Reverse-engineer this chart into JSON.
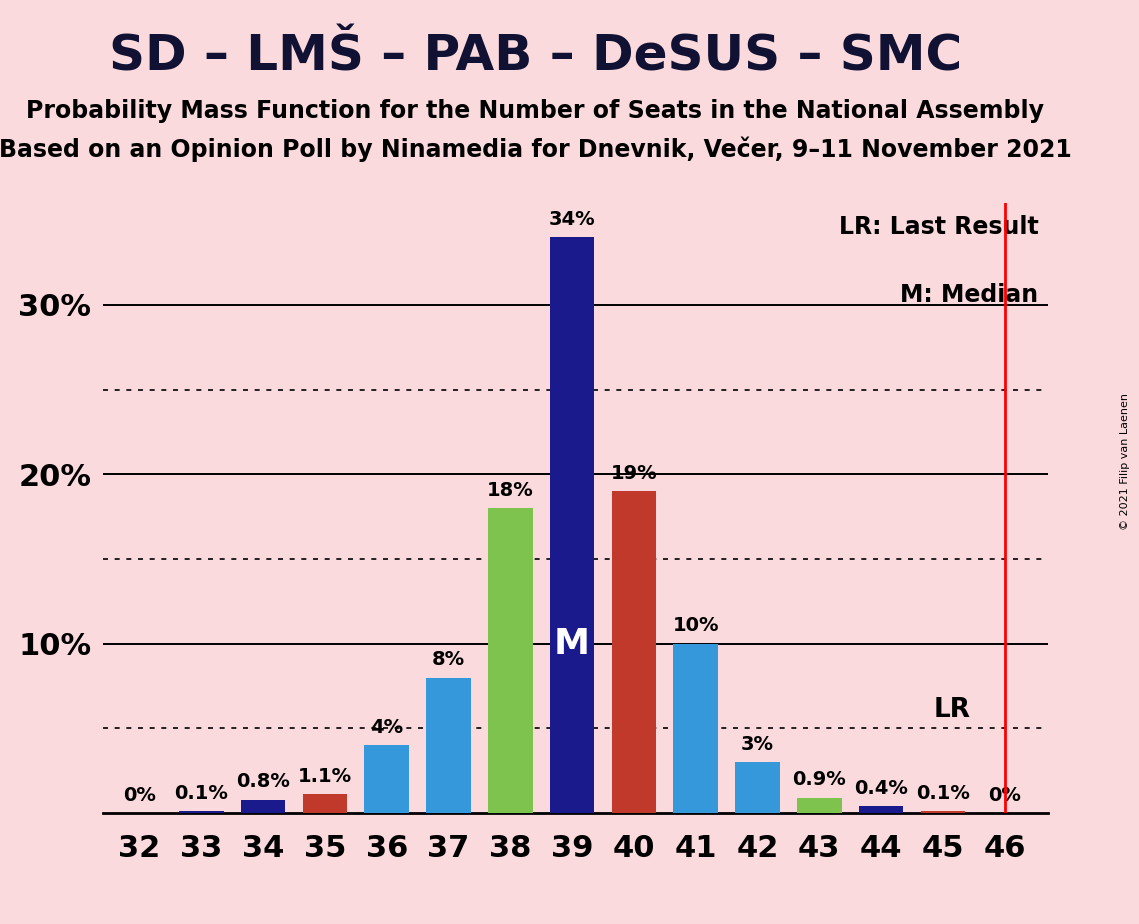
{
  "title": "SD – LMŠ – PAB – DeSUS – SMC",
  "subtitle1": "Probability Mass Function for the Number of Seats in the National Assembly",
  "subtitle2": "Based on an Opinion Poll by Ninamedia for Dnevnik, Večer, 9–11 November 2021",
  "copyright": "© 2021 Filip van Laenen",
  "seats": [
    32,
    33,
    34,
    35,
    36,
    37,
    38,
    39,
    40,
    41,
    42,
    43,
    44,
    45,
    46
  ],
  "probabilities": [
    0.0,
    0.1,
    0.8,
    1.1,
    4.0,
    8.0,
    18.0,
    34.0,
    19.0,
    10.0,
    3.0,
    0.9,
    0.4,
    0.1,
    0.0
  ],
  "labels": [
    "0%",
    "0.1%",
    "0.8%",
    "1.1%",
    "4%",
    "8%",
    "18%",
    "34%",
    "19%",
    "10%",
    "3%",
    "0.9%",
    "0.4%",
    "0.1%",
    "0%"
  ],
  "bar_colors": [
    "#1a1a8c",
    "#1a1a8c",
    "#1a1a8c",
    "#c0392b",
    "#3498db",
    "#3498db",
    "#7dc34e",
    "#1a1a8c",
    "#c0392b",
    "#3498db",
    "#3498db",
    "#7dc34e",
    "#1a1a8c",
    "#c0392b",
    "#c0392b"
  ],
  "median_seat": 39,
  "last_result_seat": 46,
  "background_color": "#fadadd",
  "ylim": [
    0,
    36
  ],
  "solid_gridlines": [
    10,
    20,
    30
  ],
  "dotted_gridlines": [
    5,
    15,
    25
  ],
  "median_label": "M",
  "lr_label": "LR",
  "lr_legend": "LR: Last Result",
  "m_legend": "M: Median"
}
